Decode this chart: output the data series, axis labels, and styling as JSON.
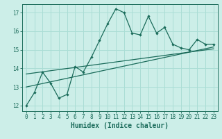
{
  "xlabel": "Humidex (Indice chaleur)",
  "ylabel": "",
  "bg_color": "#cceee8",
  "line_color": "#1a6b5a",
  "grid_color": "#aaddd5",
  "xlim": [
    -0.5,
    23.5
  ],
  "ylim": [
    11.7,
    17.45
  ],
  "yticks": [
    12,
    13,
    14,
    15,
    16,
    17
  ],
  "xticks": [
    0,
    1,
    2,
    3,
    4,
    5,
    6,
    7,
    8,
    9,
    10,
    11,
    12,
    13,
    14,
    15,
    16,
    17,
    18,
    19,
    20,
    21,
    22,
    23
  ],
  "main_x": [
    0,
    1,
    2,
    3,
    4,
    5,
    6,
    7,
    8,
    9,
    10,
    11,
    12,
    13,
    14,
    15,
    16,
    17,
    18,
    19,
    20,
    21,
    22,
    23
  ],
  "main_y": [
    12.0,
    12.7,
    13.8,
    13.2,
    12.4,
    12.6,
    14.1,
    13.8,
    14.6,
    15.5,
    16.4,
    17.2,
    17.0,
    15.9,
    15.8,
    16.8,
    15.9,
    16.2,
    15.3,
    15.1,
    15.0,
    15.55,
    15.3,
    15.3
  ],
  "trend1_x": [
    0,
    23
  ],
  "trend1_y": [
    13.0,
    15.15
  ],
  "trend2_x": [
    0,
    23
  ],
  "trend2_y": [
    13.7,
    15.05
  ],
  "tick_fontsize": 5.5,
  "xlabel_fontsize": 7.0
}
